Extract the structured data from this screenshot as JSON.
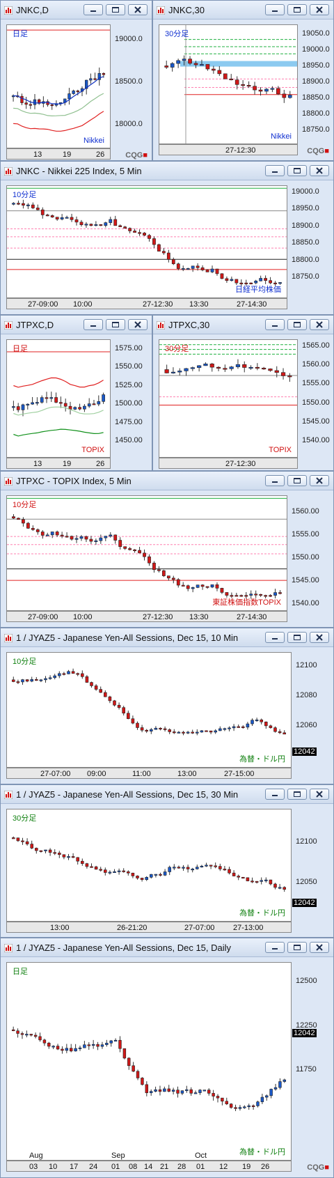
{
  "windows": [
    {
      "id": "w1",
      "title": "JNKC,D",
      "period_label": "日足",
      "series_label": "Nikkei",
      "period_color": "#1030d0",
      "series_color": "#1030d0",
      "y_ticks": [
        "19000.0",
        "18500.0",
        "18000.0"
      ],
      "x_ticks": [
        "13",
        "19",
        "26"
      ]
    },
    {
      "id": "w2",
      "title": "JNKC,30",
      "period_label": "30分足",
      "series_label": "Nikkei",
      "period_color": "#1030d0",
      "series_color": "#1030d0",
      "y_ticks": [
        "19050.0",
        "19000.0",
        "18950.0",
        "18900.0",
        "18850.0",
        "18800.0",
        "18750.0"
      ],
      "x_ticks": [
        "27-12:30"
      ]
    },
    {
      "id": "w3",
      "title": "JNKC - Nikkei 225 Index, 5 Min",
      "period_label": "10分足",
      "series_label": "日経平均株価",
      "period_color": "#1030d0",
      "series_color": "#1030d0",
      "y_ticks": [
        "19000.0",
        "18950.0",
        "18900.0",
        "18850.0",
        "18800.0",
        "18750.0"
      ],
      "x_ticks": [
        "27-09:00",
        "10:00",
        "27-12:30",
        "13:30",
        "27-14:30"
      ]
    },
    {
      "id": "w4",
      "title": "JTPXC,D",
      "period_label": "日足",
      "series_label": "TOPIX",
      "period_color": "#d01010",
      "series_color": "#d01010",
      "y_ticks": [
        "1575.00",
        "1550.00",
        "1525.00",
        "1500.00",
        "1475.00",
        "1450.00"
      ],
      "x_ticks": [
        "13",
        "19",
        "26"
      ]
    },
    {
      "id": "w5",
      "title": "JTPXC,30",
      "period_label": "30分足",
      "series_label": "TOPIX",
      "period_color": "#d01010",
      "series_color": "#d01010",
      "y_ticks": [
        "1565.00",
        "1560.00",
        "1555.00",
        "1550.00",
        "1545.00",
        "1540.00"
      ],
      "x_ticks": [
        "27-12:30"
      ]
    },
    {
      "id": "w6",
      "title": "JTPXC - TOPIX Index, 5 Min",
      "period_label": "10分足",
      "series_label": "東証株価指数TOPIX",
      "period_color": "#d01010",
      "series_color": "#d01010",
      "y_ticks": [
        "1560.00",
        "1555.00",
        "1550.00",
        "1545.00",
        "1540.00"
      ],
      "x_ticks": [
        "27-09:00",
        "10:00",
        "27-12:30",
        "13:30",
        "27-14:30"
      ]
    },
    {
      "id": "w7",
      "title": "1 / JYAZ5 - Japanese Yen-All Sessions, Dec 15, 10 Min",
      "period_label": "10分足",
      "series_label": "為替・ドル円",
      "period_color": "#108010",
      "series_color": "#108010",
      "y_ticks": [
        "12100",
        "12080",
        "12060"
      ],
      "last_value": "12042",
      "x_ticks": [
        "27-07:00",
        "09:00",
        "11:00",
        "13:00",
        "27-15:00"
      ]
    },
    {
      "id": "w8",
      "title": "1 / JYAZ5 - Japanese Yen-All Sessions, Dec 15, 30 Min",
      "period_label": "30分足",
      "series_label": "為替・ドル円",
      "period_color": "#108010",
      "series_color": "#108010",
      "y_ticks": [
        "12100",
        "12050"
      ],
      "last_value": "12042",
      "x_ticks": [
        "13:00",
        "26-21:20",
        "27-07:00",
        "27-13:00"
      ]
    },
    {
      "id": "w9",
      "title": "1 / JYAZ5 - Japanese Yen-All Sessions, Dec 15, Daily",
      "period_label": "日足",
      "series_label": "為替・ドル円",
      "period_color": "#108010",
      "series_color": "#108010",
      "y_ticks": [
        "12500",
        "12250",
        "11750"
      ],
      "last_value": "12042",
      "month_labels": [
        "Aug",
        "Sep",
        "Oct"
      ],
      "x_ticks": [
        "03",
        "10",
        "17",
        "24",
        "01",
        "08",
        "14",
        "21",
        "28",
        "01",
        "12",
        "19",
        "26"
      ]
    }
  ],
  "branding": {
    "logo_text": "CQG"
  },
  "colors": {
    "up": "#1a58c8",
    "down": "#d01818",
    "frame": "#dde7f5"
  }
}
